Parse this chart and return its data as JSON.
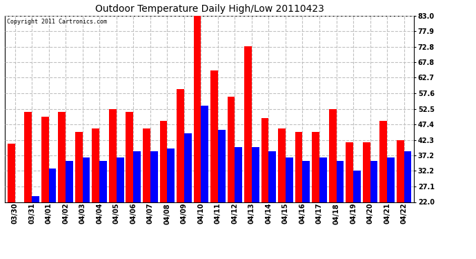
{
  "title": "Outdoor Temperature Daily High/Low 20110423",
  "copyright": "Copyright 2011 Cartronics.com",
  "categories": [
    "03/30",
    "03/31",
    "04/01",
    "04/02",
    "04/03",
    "04/04",
    "04/05",
    "04/06",
    "04/07",
    "04/08",
    "04/09",
    "04/10",
    "04/11",
    "04/12",
    "04/13",
    "04/14",
    "04/15",
    "04/16",
    "04/17",
    "04/18",
    "04/19",
    "04/20",
    "04/21",
    "04/22"
  ],
  "high_values": [
    41.0,
    51.5,
    50.0,
    51.5,
    45.0,
    46.0,
    52.5,
    51.5,
    46.0,
    48.5,
    59.0,
    83.0,
    65.0,
    56.5,
    73.0,
    49.5,
    46.0,
    45.0,
    45.0,
    52.5,
    41.5,
    41.5,
    48.5,
    42.3
  ],
  "low_values": [
    22.0,
    24.0,
    33.0,
    35.5,
    36.5,
    35.5,
    36.5,
    38.5,
    38.5,
    39.5,
    44.5,
    53.5,
    45.5,
    40.0,
    40.0,
    38.5,
    36.5,
    35.5,
    36.5,
    35.5,
    32.2,
    35.5,
    36.5,
    38.5
  ],
  "high_color": "#ff0000",
  "low_color": "#0000ff",
  "background_color": "#ffffff",
  "plot_bg_color": "#ffffff",
  "grid_color": "#c0c0c0",
  "yticks": [
    22.0,
    27.1,
    32.2,
    37.2,
    42.3,
    47.4,
    52.5,
    57.6,
    62.7,
    67.8,
    72.8,
    77.9,
    83.0
  ],
  "ymin": 22.0,
  "ymax": 83.0,
  "bar_width": 0.44,
  "title_fontsize": 10,
  "tick_fontsize": 7,
  "copyright_fontsize": 6
}
